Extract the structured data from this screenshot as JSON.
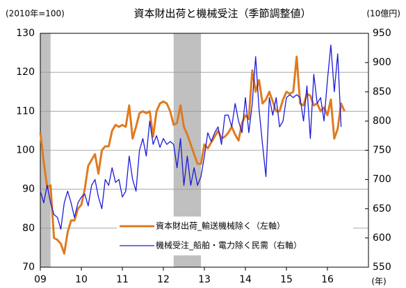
{
  "chart_data": {
    "type": "line",
    "title": "資本財出荷と機械受注（季節調整値）",
    "y_label": "(2010年=100)",
    "y2_label": "(10億円)",
    "x_label": "(年)",
    "x": [
      2009,
      2009.083,
      2009.167,
      2009.25,
      2009.333,
      2009.417,
      2009.5,
      2009.583,
      2009.667,
      2009.75,
      2009.833,
      2009.917,
      2010,
      2010.083,
      2010.167,
      2010.25,
      2010.333,
      2010.417,
      2010.5,
      2010.583,
      2010.667,
      2010.75,
      2010.833,
      2010.917,
      2011,
      2011.083,
      2011.167,
      2011.25,
      2011.333,
      2011.417,
      2011.5,
      2011.583,
      2011.667,
      2011.75,
      2011.833,
      2011.917,
      2012,
      2012.083,
      2012.167,
      2012.25,
      2012.333,
      2012.417,
      2012.5,
      2012.583,
      2012.667,
      2012.75,
      2012.833,
      2012.917,
      2013,
      2013.083,
      2013.167,
      2013.25,
      2013.333,
      2013.417,
      2013.5,
      2013.583,
      2013.667,
      2013.75,
      2013.833,
      2013.917,
      2014,
      2014.083,
      2014.167,
      2014.25,
      2014.333,
      2014.417,
      2014.5,
      2014.583,
      2014.667,
      2014.75,
      2014.833,
      2014.917,
      2015,
      2015.083,
      2015.167,
      2015.25,
      2015.333,
      2015.417,
      2015.5,
      2015.583,
      2015.667,
      2015.75,
      2015.833,
      2015.917,
      2016,
      2016.083,
      2016.167,
      2016.25,
      2016.333,
      2016.417
    ],
    "series": [
      {
        "name": "資本財出荷_輸送機械除く（左軸）",
        "color": "#e07a1f",
        "width": 3,
        "values": [
          104.5,
          97,
          90.5,
          91,
          77.5,
          77,
          76,
          73.5,
          79,
          82,
          82,
          85,
          86,
          90,
          96,
          97.5,
          99,
          94,
          100,
          101,
          101,
          105,
          106.5,
          106,
          106.5,
          106,
          111.5,
          103,
          106,
          109.5,
          110,
          109.5,
          110,
          103.5,
          110,
          112,
          112.5,
          112,
          110,
          106.5,
          107,
          111.5,
          106,
          104,
          101.5,
          99,
          96.5,
          96.5,
          101.5,
          100.5,
          102,
          103.5,
          105,
          103,
          103.5,
          104.5,
          106,
          104,
          102.5,
          107,
          109,
          108,
          120.5,
          115,
          118,
          112,
          113,
          115,
          112.5,
          110,
          110,
          113,
          115,
          114.5,
          115,
          124,
          112,
          111.5,
          114.5,
          114,
          111.5,
          112,
          110,
          111,
          109,
          113,
          103,
          105.5,
          112,
          110
        ]
      },
      {
        "name": "機械受注_船舶・電力除く民需（右軸）",
        "color": "#1a1adb",
        "width": 1.3,
        "axis": "y2",
        "values": [
          680,
          660,
          690,
          660,
          640,
          635,
          615,
          660,
          680,
          660,
          635,
          660,
          670,
          675,
          655,
          690,
          700,
          670,
          650,
          700,
          690,
          720,
          695,
          700,
          670,
          680,
          740,
          700,
          680,
          750,
          770,
          740,
          800,
          760,
          775,
          755,
          770,
          760,
          765,
          760,
          720,
          770,
          690,
          740,
          690,
          720,
          690,
          705,
          740,
          780,
          765,
          780,
          790,
          760,
          810,
          810,
          790,
          830,
          800,
          780,
          840,
          780,
          830,
          910,
          820,
          760,
          705,
          840,
          810,
          840,
          790,
          800,
          840,
          845,
          840,
          845,
          840,
          800,
          860,
          770,
          880,
          830,
          840,
          800,
          870,
          930,
          850,
          915,
          790,
          null
        ]
      }
    ],
    "shaded": [
      [
        2009,
        2009.25
      ],
      [
        2012.25,
        2012.917
      ]
    ],
    "shade_color": "#c0c0c0",
    "xlim": [
      2009,
      2017
    ],
    "xticks": [
      {
        "value": 2009,
        "label": "09"
      },
      {
        "value": 2010,
        "label": "10"
      },
      {
        "value": 2011,
        "label": "11"
      },
      {
        "value": 2012,
        "label": "12"
      },
      {
        "value": 2013,
        "label": "13"
      },
      {
        "value": 2014,
        "label": "14"
      },
      {
        "value": 2015,
        "label": "15"
      },
      {
        "value": 2016,
        "label": "16"
      }
    ],
    "ylim": [
      70,
      130
    ],
    "yticks": [
      70,
      80,
      90,
      100,
      110,
      120,
      130
    ],
    "y2lim": [
      550,
      950
    ],
    "y2ticks": [
      550,
      600,
      650,
      700,
      750,
      800,
      850,
      900,
      950
    ],
    "grid": true
  }
}
